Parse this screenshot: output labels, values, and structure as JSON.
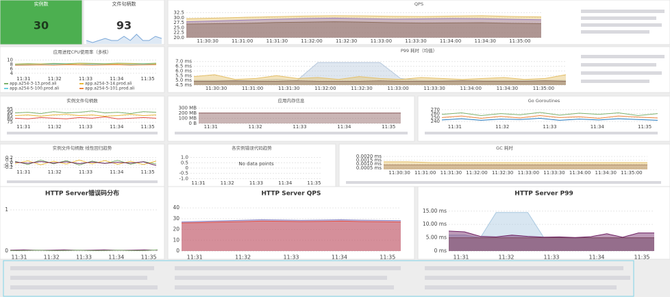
{
  "panels": [
    {
      "type": "stat",
      "title": "实例数",
      "value": 30,
      "color": "#4caf50"
    },
    {
      "type": "stat",
      "title": "文件句柄数",
      "value": 93,
      "sparkline": [
        93,
        92,
        93,
        94,
        93,
        93,
        95,
        93,
        96,
        93,
        93,
        95,
        94
      ],
      "color": "#7aa7d8"
    },
    {
      "type": "line",
      "title": "QPS",
      "fill": true,
      "ylim": [
        20,
        33
      ],
      "yticks": [
        32.5,
        {
          "value": 30,
          "label": "30.0"
        },
        27.5,
        {
          "value": 25,
          "label": "25.0"
        },
        22.5,
        {
          "value": 20,
          "label": "20.0"
        }
      ],
      "xticks": [
        "11:30:30",
        "11:31:00",
        "11:31:30",
        "11:32:00",
        "11:32:30",
        "11:33:00",
        "11:33:30",
        "11:34:00",
        "11:34:30",
        "11:35:00"
      ],
      "series": [
        {
          "color": "#e5c06a",
          "values": [
            29.5,
            29.8,
            30.2,
            30.5,
            30.8,
            31,
            30.9,
            30.7,
            30.6,
            30.8,
            31,
            30.6,
            30.4
          ]
        },
        {
          "color": "#9b7fbf",
          "values": [
            28,
            28.4,
            28.8,
            29.2,
            29.6,
            29.8,
            29.5,
            29.3,
            29.4,
            29.6,
            29.5,
            29.2,
            29
          ]
        },
        {
          "color": "#8f6f5f",
          "values": [
            26.8,
            27,
            27.2,
            27.6,
            27.8,
            28,
            27.8,
            27.5,
            27.3,
            27.4,
            27.5,
            27.2,
            27
          ]
        }
      ]
    },
    {
      "type": "line",
      "title": "应用进程CPU使用率（多核）",
      "fill": false,
      "ylim": [
        3,
        10.5
      ],
      "yticks": [
        10,
        8,
        6,
        4
      ],
      "xticks": [
        "11:31",
        "11:32",
        "11:33",
        "11:34",
        "11:35"
      ],
      "series": [
        {
          "name": "app.a254-3-13.prod.ali",
          "color": "#7eb26d",
          "values": [
            8.2,
            8.4,
            8.3,
            8.5,
            8.4,
            8.6,
            8.5,
            8.4,
            8.6,
            8.5,
            8.4,
            8.6
          ]
        },
        {
          "name": "app.a254-3-14.prod.ali",
          "color": "#eab839",
          "values": [
            8,
            8.1,
            8.3,
            8.2,
            8.1,
            8.4,
            8.3,
            8.2,
            8.3,
            8.4,
            8.2,
            8.3
          ]
        },
        {
          "name": "app.a254-5-100.prod.ali",
          "color": "#6ed0e0",
          "values": [
            7.8,
            7.9,
            8,
            8.1,
            8,
            7.9,
            8.1,
            8,
            7.9,
            8,
            8.1,
            8
          ]
        },
        {
          "name": "app.a254-5-101.prod.ali",
          "color": "#ef843c",
          "values": [
            7.6,
            7.7,
            7.8,
            7.7,
            7.9,
            7.8,
            7.7,
            7.8,
            7.9,
            7.7,
            7.8,
            7.9
          ]
        }
      ]
    },
    {
      "type": "line",
      "title": "P99 耗时（均值）",
      "fill": true,
      "ylim": [
        4.5,
        7.2
      ],
      "yticks": [
        {
          "value": 7,
          "label": "7.0 ms"
        },
        {
          "value": 6.5,
          "label": "6.5 ms"
        },
        {
          "value": 6,
          "label": "6.0 ms"
        },
        {
          "value": 5.5,
          "label": "5.5 ms"
        },
        {
          "value": 5,
          "label": "5.0 ms"
        },
        {
          "value": 4.5,
          "label": "4.5 ms"
        }
      ],
      "xticks": [
        "11:30:30",
        "11:31:00",
        "11:31:30",
        "11:32:00",
        "11:32:30",
        "11:33:00",
        "11:33:30",
        "11:34:00",
        "11:34:30",
        "11:35:00"
      ],
      "series": [
        {
          "color": "#b7c9dd",
          "values": [
            5,
            5,
            5,
            5,
            5.1,
            5,
            6.9,
            6.9,
            6.9,
            6.9,
            5.2,
            5,
            5,
            5,
            5,
            5,
            5,
            5,
            5
          ]
        },
        {
          "color": "#e5c06a",
          "values": [
            5.4,
            5.6,
            5.1,
            5.2,
            5.5,
            5.2,
            5.3,
            5.1,
            5.4,
            5.2,
            5.1,
            5.3,
            5.2,
            5.1,
            5.2,
            5.3,
            5.1,
            5.2,
            5.6
          ]
        },
        {
          "color": "#8f6f5f",
          "values": [
            4.9,
            4.9,
            4.95,
            4.9,
            4.9,
            4.95,
            4.9,
            4.9,
            4.9,
            4.95,
            4.9,
            4.9,
            4.9,
            4.95,
            4.9,
            4.9,
            4.9,
            4.95,
            4.9
          ]
        }
      ]
    },
    {
      "type": "line",
      "title": "实例文件句柄数",
      "fill": false,
      "ylim": [
        73,
        97
      ],
      "yticks": [
        95,
        90,
        85,
        80,
        75
      ],
      "xticks": [
        "11:31",
        "11:32",
        "11:33",
        "11:34",
        "11:35"
      ],
      "series": [
        {
          "color": "#7eb26d",
          "values": [
            89,
            90,
            88,
            91,
            89,
            90,
            92,
            89,
            90,
            88,
            91,
            90
          ]
        },
        {
          "color": "#eab839",
          "values": [
            85,
            86,
            84,
            86,
            87,
            85,
            86,
            84,
            85,
            87,
            85,
            86
          ]
        },
        {
          "color": "#e24d42",
          "values": [
            81,
            80,
            82,
            81,
            80,
            82,
            81,
            83,
            80,
            81,
            82,
            81
          ]
        }
      ]
    },
    {
      "type": "line",
      "title": "应用内存信息",
      "fill": true,
      "ylim": [
        0,
        310
      ],
      "yticks": [
        {
          "value": 300,
          "label": "300 MB"
        },
        {
          "value": 200,
          "label": "200 MB"
        },
        {
          "value": 100,
          "label": "100 MB"
        },
        {
          "value": 0,
          "label": "0 B"
        }
      ],
      "xticks": [
        "11:31",
        "11:32",
        "11:33",
        "11:34",
        "11:35"
      ],
      "series": [
        {
          "color": "#8a5a5a",
          "values": [
            205,
            205,
            206,
            205,
            205,
            206,
            205,
            205,
            206,
            205
          ]
        }
      ]
    },
    {
      "type": "line",
      "title": "Go Goroutines",
      "fill": false,
      "ylim": [
        235,
        275
      ],
      "yticks": [
        270,
        260,
        250,
        240
      ],
      "xticks": [
        "11:31",
        "11:32",
        "11:33",
        "11:34",
        "11:35"
      ],
      "series": [
        {
          "color": "#7eb26d",
          "values": [
            258,
            262,
            255,
            260,
            257,
            263,
            256,
            261,
            258,
            262,
            255,
            260
          ]
        },
        {
          "color": "#ef843c",
          "values": [
            250,
            254,
            248,
            253,
            249,
            255,
            250,
            252,
            248,
            254,
            251,
            249
          ]
        },
        {
          "color": "#1f78c1",
          "values": [
            244,
            247,
            243,
            246,
            245,
            248,
            243,
            246,
            244,
            247,
            245,
            243
          ]
        }
      ]
    },
    {
      "type": "line",
      "title": "实例文件句柄数 线性回归趋势",
      "fill": false,
      "ylim": [
        -0.25,
        0.25
      ],
      "yticks": [
        0.2,
        0.1,
        0,
        -0.1,
        -0.2
      ],
      "xticks": [
        "11:31",
        "11:32",
        "11:33",
        "11:34",
        "11:35"
      ],
      "series": [
        {
          "color": "#7eb26d",
          "values": [
            0.05,
            -0.08,
            0.1,
            -0.05,
            0.08,
            -0.1,
            0.06,
            -0.04,
            0.09,
            -0.07,
            0.04,
            -0.06
          ]
        },
        {
          "color": "#eab839",
          "values": [
            -0.04,
            0.07,
            -0.09,
            0.05,
            -0.06,
            0.1,
            -0.05,
            0.08,
            -0.07,
            0.05,
            -0.08,
            0.06
          ]
        },
        {
          "color": "#6d1f62",
          "values": [
            0.02,
            -0.03,
            0.04,
            -0.02,
            0.03,
            -0.04,
            0.02,
            -0.03,
            0.01,
            -0.02,
            0.03,
            -0.12
          ]
        }
      ]
    },
    {
      "type": "line",
      "title": "各实例错误代码趋势",
      "fill": false,
      "ylim": [
        -1.1,
        1.1
      ],
      "yticks": [
        {
          "value": 1,
          "label": "1.0"
        },
        0.5,
        0,
        -0.5,
        {
          "value": -1,
          "label": "-1.0"
        }
      ],
      "xticks": [
        "11:31",
        "11:32",
        "11:33",
        "11:34",
        "11:35"
      ],
      "no_data": "No data points",
      "series": []
    },
    {
      "type": "line",
      "title": "GC 耗时",
      "fill": true,
      "ylim": [
        0.0003,
        0.0021
      ],
      "yticks": [
        {
          "value": 0.002,
          "label": "0.0020 ms"
        },
        {
          "value": 0.0015,
          "label": "0.0015 ms"
        },
        {
          "value": 0.001,
          "label": "0.0010 ms"
        },
        {
          "value": 0.0005,
          "label": "0.0005 ms"
        }
      ],
      "xticks": [
        "11:30:30",
        "11:31:00",
        "11:31:30",
        "11:32:00",
        "11:32:30",
        "11:33:00",
        "11:33:30",
        "11:34:00",
        "11:34:30",
        "11:35:00"
      ],
      "series": [
        {
          "color": "#e5c06a",
          "values": [
            0.0013,
            0.0013,
            0.0012,
            0.0012,
            0.0012,
            0.0012,
            0.0012,
            0.0012,
            0.0012,
            0.0012,
            0.0012,
            0.0012
          ]
        },
        {
          "color": "#b08a6a",
          "values": [
            0.0009,
            0.0009,
            0.0009,
            0.0009,
            0.0009,
            0.0009,
            0.0009,
            0.0009,
            0.0009,
            0.0009,
            0.0009,
            0.0009
          ]
        }
      ]
    },
    {
      "type": "line",
      "title": "HTTP Server错误码分布",
      "fill": false,
      "ylim": [
        0,
        1.1
      ],
      "yticks": [
        1,
        0
      ],
      "xticks": [
        "11:31",
        "11:32",
        "11:33",
        "11:34",
        "11:35"
      ],
      "series": [
        {
          "color": "#6d1f62",
          "values": [
            0.02,
            0.03,
            0.02,
            0.02,
            0.03,
            0.02,
            0.02,
            0.03,
            0.02,
            0.02,
            0.03,
            0.02
          ]
        },
        {
          "color": "#7eb26d",
          "values": [
            0.01,
            0.01,
            0.02,
            0.01,
            0.01,
            0.02,
            0.01,
            0.01,
            0.02,
            0.01,
            0.01,
            0.03
          ]
        }
      ]
    },
    {
      "type": "line",
      "title": "HTTP Server QPS",
      "fill": true,
      "ylim": [
        0,
        42
      ],
      "yticks": [
        40,
        30,
        20,
        10,
        0
      ],
      "xticks": [
        "11:31",
        "11:32",
        "11:33",
        "11:34",
        "11:35"
      ],
      "series": [
        {
          "color": "#8a7fbf",
          "values": [
            27,
            27.5,
            28,
            28.5,
            29,
            28.8,
            28.5,
            28.7,
            29,
            28.6,
            28.4,
            28.2
          ]
        },
        {
          "color": "#e24d42",
          "values": [
            26,
            26.4,
            27,
            27.3,
            27.8,
            27.6,
            27.4,
            27.5,
            27.8,
            27.4,
            27.2,
            27
          ]
        }
      ]
    },
    {
      "type": "line",
      "title": "HTTP Server P99",
      "fill": true,
      "ylim": [
        0,
        17
      ],
      "yticks": [
        {
          "value": 15,
          "label": "15.00 ms"
        },
        {
          "value": 10,
          "label": "10.00 ms"
        },
        {
          "value": 5,
          "label": "5.00 ms"
        },
        {
          "value": 0,
          "label": "0 ms"
        }
      ],
      "xticks": [
        "11:31",
        "11:32",
        "11:33",
        "11:34",
        "11:35"
      ],
      "series": [
        {
          "color": "#a9c8e0",
          "values": [
            6,
            6,
            5,
            14.5,
            14.5,
            14.5,
            5.2,
            5,
            5,
            5,
            5,
            5,
            5,
            5
          ]
        },
        {
          "color": "#8f6f5f",
          "values": [
            5,
            5,
            5,
            5,
            5,
            5,
            5,
            5,
            5,
            5,
            5,
            5,
            5,
            5
          ]
        },
        {
          "color": "#6d1f62",
          "values": [
            7.5,
            7.2,
            5.5,
            5.3,
            6,
            5.5,
            5.2,
            5.3,
            5.1,
            5.4,
            6.5,
            5.2,
            6.8,
            6.8
          ]
        }
      ]
    }
  ]
}
